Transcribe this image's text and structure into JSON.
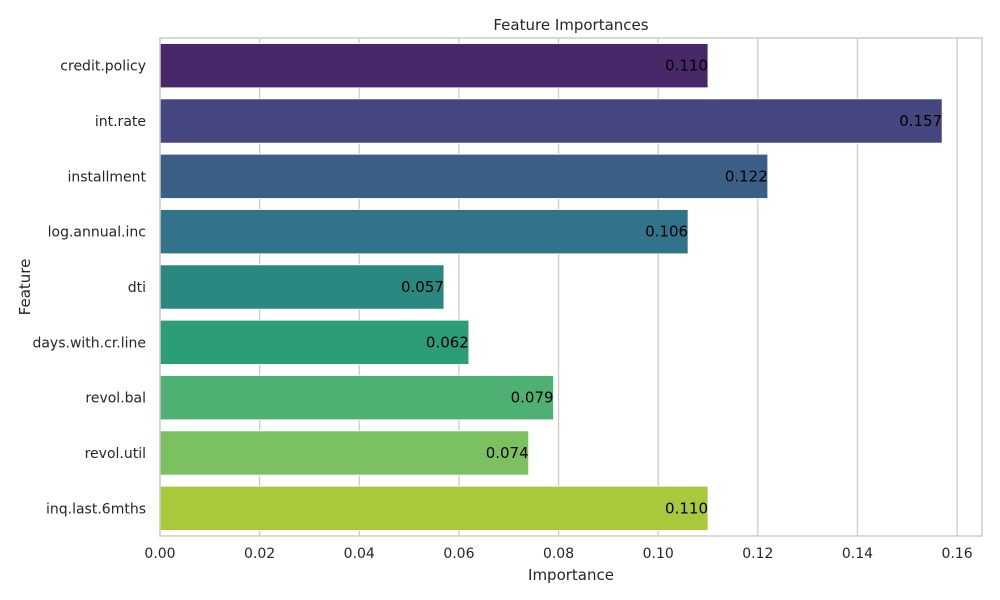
{
  "chart_data": {
    "type": "bar",
    "orientation": "horizontal",
    "title": "Feature Importances",
    "xlabel": "Importance",
    "ylabel": "Feature",
    "xlim": [
      0,
      0.165
    ],
    "xticks": [
      0.0,
      0.02,
      0.04,
      0.06,
      0.08,
      0.1,
      0.12,
      0.14,
      0.16
    ],
    "xtick_labels": [
      "0.00",
      "0.02",
      "0.04",
      "0.06",
      "0.08",
      "0.10",
      "0.12",
      "0.14",
      "0.16"
    ],
    "grid": "vertical",
    "categories": [
      "credit.policy",
      "int.rate",
      "installment",
      "log.annual.inc",
      "dti",
      "days.with.cr.line",
      "revol.bal",
      "revol.util",
      "inq.last.6mths"
    ],
    "values": [
      0.11,
      0.157,
      0.122,
      0.106,
      0.057,
      0.062,
      0.079,
      0.074,
      0.11
    ],
    "value_labels": [
      "0.110",
      "0.157",
      "0.122",
      "0.106",
      "0.057",
      "0.062",
      "0.079",
      "0.074",
      "0.110"
    ],
    "colors": [
      "#472869",
      "#45457f",
      "#3b5e87",
      "#30738b",
      "#2a8880",
      "#2b9d78",
      "#4fb074",
      "#7cc15f",
      "#aac83c"
    ]
  }
}
